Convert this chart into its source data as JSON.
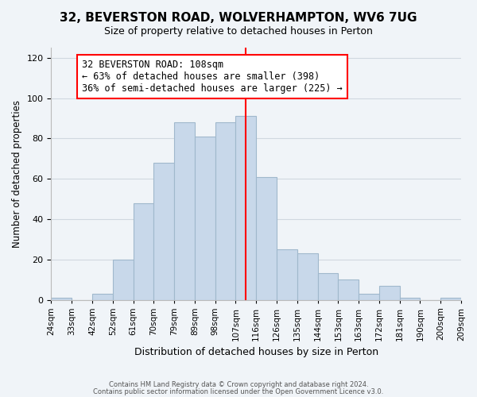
{
  "title": "32, BEVERSTON ROAD, WOLVERHAMPTON, WV6 7UG",
  "subtitle": "Size of property relative to detached houses in Perton",
  "xlabel": "Distribution of detached houses by size in Perton",
  "ylabel": "Number of detached properties",
  "footer_lines": [
    "Contains HM Land Registry data © Crown copyright and database right 2024.",
    "Contains public sector information licensed under the Open Government Licence v3.0."
  ],
  "bin_labels": [
    "24sqm",
    "33sqm",
    "42sqm",
    "52sqm",
    "61sqm",
    "70sqm",
    "79sqm",
    "89sqm",
    "98sqm",
    "107sqm",
    "116sqm",
    "126sqm",
    "135sqm",
    "144sqm",
    "153sqm",
    "163sqm",
    "172sqm",
    "181sqm",
    "190sqm",
    "200sqm",
    "209sqm"
  ],
  "bar_values": [
    1,
    0,
    3,
    20,
    48,
    68,
    88,
    81,
    88,
    91,
    61,
    25,
    23,
    13,
    10,
    3,
    7,
    1,
    0,
    1
  ],
  "bar_color": "#c8d8ea",
  "bar_edge_color": "#a0b8cc",
  "vline_color": "red",
  "vline_position": 9.5,
  "annotation_box_text": "32 BEVERSTON ROAD: 108sqm\n← 63% of detached houses are smaller (398)\n36% of semi-detached houses are larger (225) →",
  "annotation_fontsize": 8.5,
  "ylim": [
    0,
    125
  ],
  "yticks": [
    0,
    20,
    40,
    60,
    80,
    100,
    120
  ],
  "grid_color": "#d0d8e0",
  "background_color": "#f0f4f8"
}
